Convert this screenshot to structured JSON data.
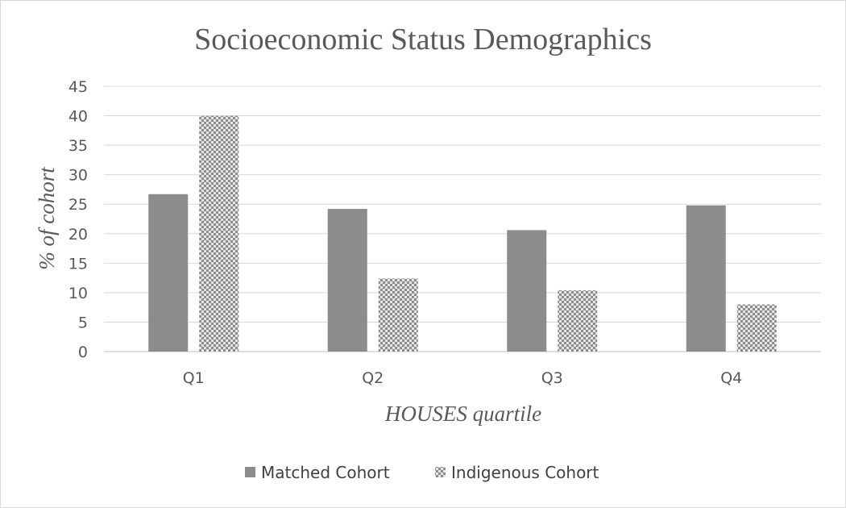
{
  "chart_data": {
    "type": "bar",
    "title": "Socioeconomic Status Demographics",
    "xlabel": "HOUSES quartile",
    "ylabel": "% of cohort",
    "categories": [
      "Q1",
      "Q2",
      "Q3",
      "Q4"
    ],
    "series": [
      {
        "name": "Matched Cohort",
        "values": [
          26.7,
          24.2,
          20.6,
          24.8
        ],
        "color": "#8c8c8c",
        "fill": "solid"
      },
      {
        "name": "Indigenous Cohort",
        "values": [
          40.0,
          12.4,
          10.4,
          8.0
        ],
        "color": "#9a9a9a",
        "fill": "checkerboard"
      }
    ],
    "ylim": [
      0,
      45
    ],
    "yticks": [
      0,
      5,
      10,
      15,
      20,
      25,
      30,
      35,
      40,
      45
    ],
    "grid": true,
    "legend": "bottom"
  }
}
